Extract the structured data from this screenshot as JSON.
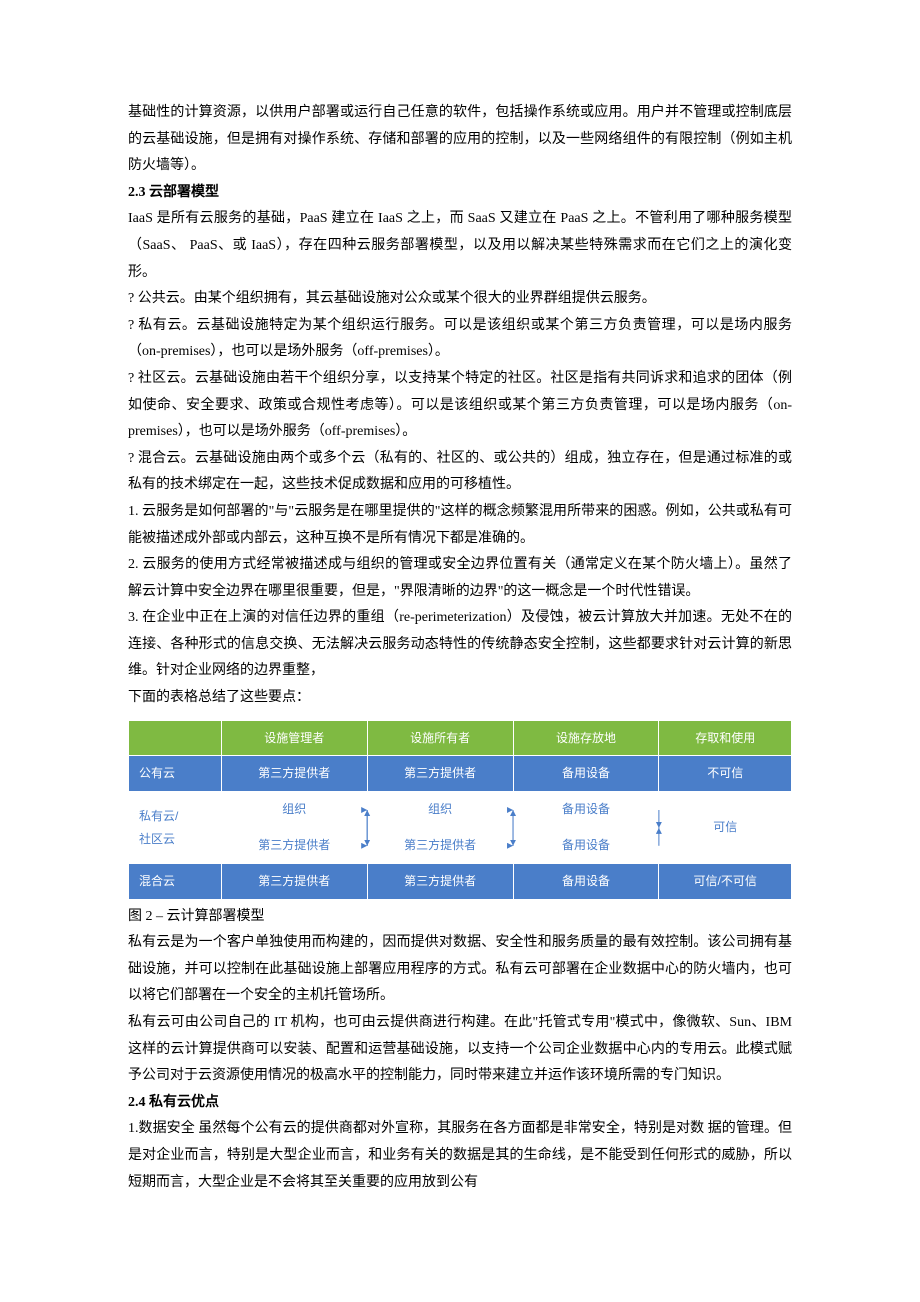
{
  "p1": "基础性的计算资源，以供用户部署或运行自己任意的软件，包括操作系统或应用。用户并不管理或控制底层的云基础设施，但是拥有对操作系统、存储和部署的应用的控制，以及一些网络组件的有限控制（例如主机防火墙等）。",
  "h23": "2.3  云部署模型",
  "p2": "IaaS 是所有云服务的基础，PaaS 建立在 IaaS 之上，而 SaaS 又建立在 PaaS 之上。不管利用了哪种服务模型（SaaS、 PaaS、或 IaaS），存在四种云服务部署模型，以及用以解决某些特殊需求而在它们之上的演化变形。",
  "p3": "? 公共云。由某个组织拥有，其云基础设施对公众或某个很大的业界群组提供云服务。",
  "p4": "? 私有云。云基础设施特定为某个组织运行服务。可以是该组织或某个第三方负责管理，可以是场内服务（on-premises），也可以是场外服务（off-premises）。",
  "p5": "? 社区云。云基础设施由若干个组织分享，以支持某个特定的社区。社区是指有共同诉求和追求的团体（例如使命、安全要求、政策或合规性考虑等）。可以是该组织或某个第三方负责管理，可以是场内服务（on-premises），也可以是场外服务（off-premises）。",
  "p6": "? 混合云。云基础设施由两个或多个云（私有的、社区的、或公共的）组成，独立存在，但是通过标准的或私有的技术绑定在一起，这些技术促成数据和应用的可移植性。",
  "p7": "1. 云服务是如何部署的\"与\"云服务是在哪里提供的\"这样的概念频繁混用所带来的困惑。例如，公共或私有可能被描述成外部或内部云，这种互换不是所有情况下都是准确的。",
  "p8": "2. 云服务的使用方式经常被描述成与组织的管理或安全边界位置有关（通常定义在某个防火墙上）。虽然了解云计算中安全边界在哪里很重要，但是，\"界限清晰的边界\"的这一概念是一个时代性错误。",
  "p9": "3. 在企业中正在上演的对信任边界的重组（re-perimeterization）及侵蚀，被云计算放大并加速。无处不在的连接、各种形式的信息交换、无法解决云服务动态特性的传统静态安全控制，这些都要求针对云计算的新思维。针对企业网络的边界重整，",
  "p10": "下面的表格总结了这些要点：",
  "table": {
    "headers": [
      "",
      "设施管理者",
      "设施所有者",
      "设施存放地",
      "存取和使用"
    ],
    "rows": [
      {
        "style": "blue",
        "cells": [
          "公有云",
          "第三方提供者",
          "第三方提供者",
          "备用设备",
          "不可信"
        ]
      },
      {
        "style": "white",
        "cells": [
          "私有云/",
          "组织",
          "组织",
          "备用设备",
          ""
        ]
      },
      {
        "style": "white",
        "cells": [
          "社区云",
          "第三方提供者",
          "第三方提供者",
          "备用设备",
          "可信"
        ]
      },
      {
        "style": "blue",
        "cells": [
          "混合云",
          "第三方提供者",
          "第三方提供者",
          "备用设备",
          "可信/不可信"
        ]
      }
    ],
    "col_widths": [
      "14%",
      "22%",
      "22%",
      "22%",
      "20%"
    ],
    "header_bg": "#7fba42",
    "blue_bg": "#4a7ec9",
    "white_bg": "#ffffff",
    "arrow_color": "#4a7ec9"
  },
  "caption": "图 2 –  云计算部署模型",
  "p11": "私有云是为一个客户单独使用而构建的，因而提供对数据、安全性和服务质量的最有效控制。该公司拥有基础设施，并可以控制在此基础设施上部署应用程序的方式。私有云可部署在企业数据中心的防火墙内，也可以将它们部署在一个安全的主机托管场所。",
  "p12": "私有云可由公司自己的 IT 机构，也可由云提供商进行构建。在此\"托管式专用\"模式中，像微软、Sun、IBM 这样的云计算提供商可以安装、配置和运营基础设施，以支持一个公司企业数据中心内的专用云。此模式赋予公司对于云资源使用情况的极高水平的控制能力，同时带来建立并运作该环境所需的专门知识。",
  "h24": "2.4  私有云优点",
  "p13": "1.数据安全  虽然每个公有云的提供商都对外宣称，其服务在各方面都是非常安全，特别是对数 据的管理。但是对企业而言，特别是大型企业而言，和业务有关的数据是其的生命线，是不能受到任何形式的威胁，所以短期而言，大型企业是不会将其至关重要的应用放到公有"
}
